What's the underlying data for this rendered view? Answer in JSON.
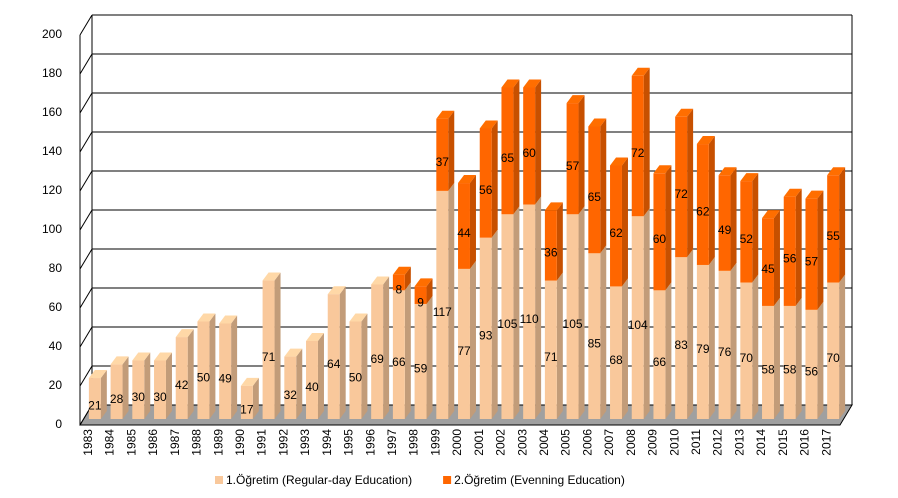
{
  "chart_data": {
    "type": "bar",
    "stacked": true,
    "three_d": true,
    "grid": true,
    "legend": "bottom",
    "categories": [
      "1983",
      "1984",
      "1985",
      "1986",
      "1987",
      "1988",
      "1989",
      "1990",
      "1991",
      "1992",
      "1993",
      "1994",
      "1995",
      "1996",
      "1997",
      "1998",
      "1999",
      "2000",
      "2001",
      "2002",
      "2003",
      "2004",
      "2005",
      "2006",
      "2007",
      "2008",
      "2009",
      "2010",
      "2011",
      "2012",
      "2013",
      "2014",
      "2015",
      "2016",
      "2017"
    ],
    "series": [
      {
        "name": "1.Öğretim (Regular-day Education)",
        "color": "#f9c89b",
        "values": [
          21,
          28,
          30,
          30,
          42,
          50,
          49,
          17,
          71,
          32,
          40,
          64,
          50,
          69,
          66,
          59,
          117,
          77,
          93,
          105,
          110,
          71,
          105,
          85,
          68,
          104,
          66,
          83,
          79,
          76,
          70,
          58,
          58,
          56,
          70
        ]
      },
      {
        "name": "2.Öğretim (Evenning Education)",
        "color": "#ff6600",
        "values": [
          null,
          null,
          null,
          null,
          null,
          null,
          null,
          null,
          null,
          null,
          null,
          null,
          null,
          null,
          8,
          9,
          37,
          44,
          56,
          65,
          60,
          36,
          57,
          65,
          62,
          72,
          60,
          72,
          62,
          49,
          52,
          45,
          56,
          57,
          55
        ]
      }
    ],
    "ylim": [
      0,
      200
    ],
    "yticks": [
      0,
      20,
      40,
      60,
      80,
      100,
      120,
      140,
      160,
      180,
      200
    ]
  }
}
